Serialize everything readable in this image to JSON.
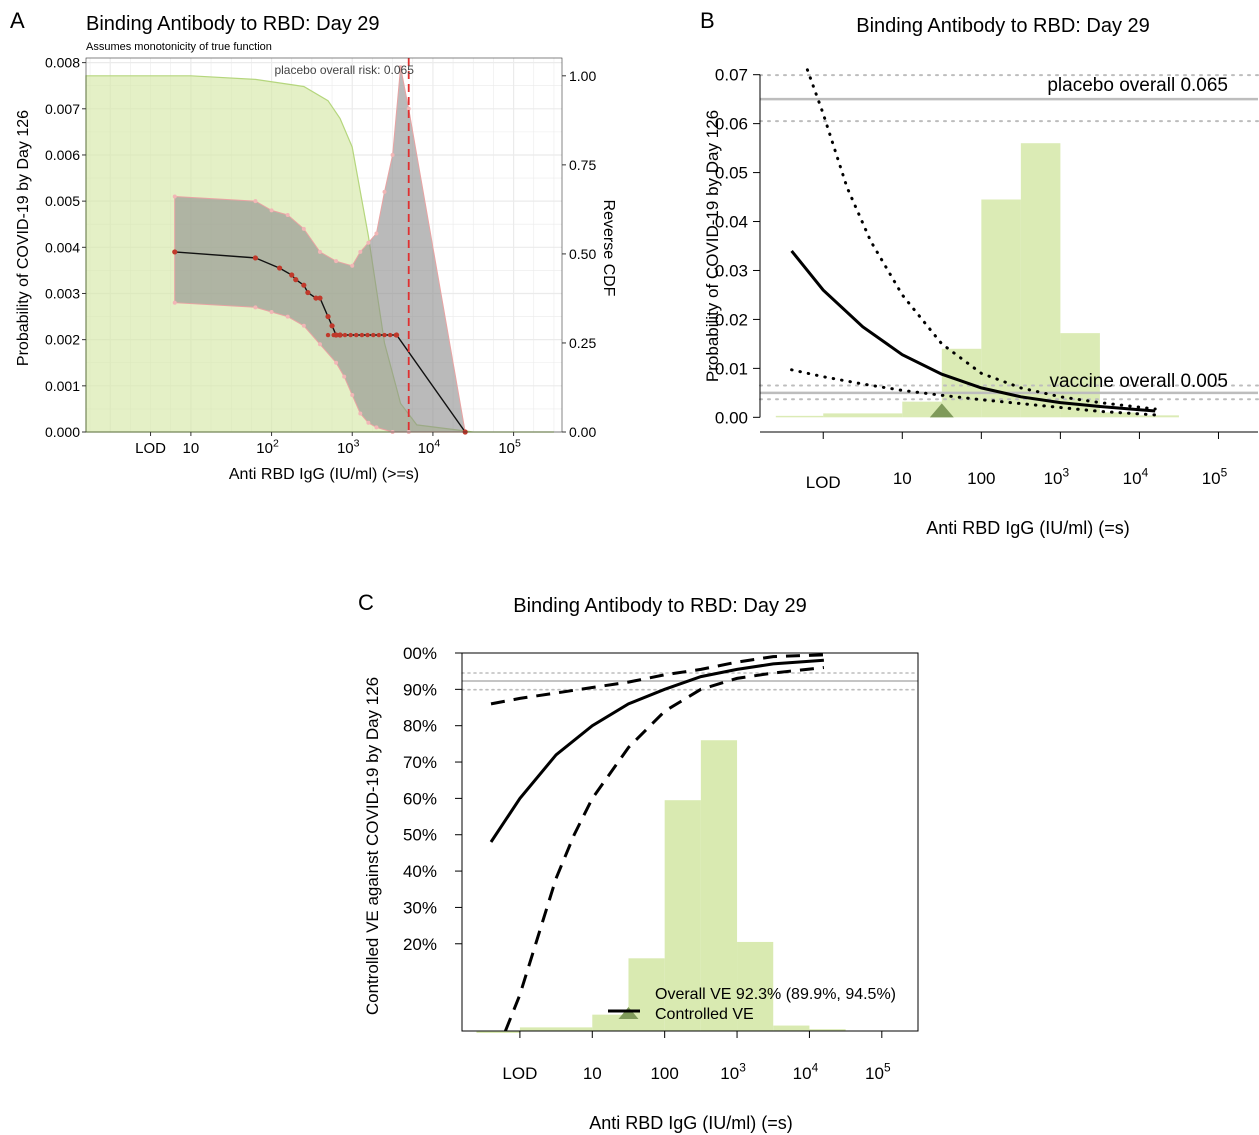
{
  "figure": {
    "colors": {
      "green_fill": "#d5e8a8",
      "green_line": "#b5d67d",
      "grey_band": "#8c8c8c",
      "point_fill": "#c0392b",
      "ref_line": "#e03030",
      "grid": "#ebebeb",
      "overall_line": "#bdbdbd",
      "marker": "#7f9a5a"
    }
  },
  "chart_data": [
    {
      "panel": "A",
      "type": "area",
      "panel_letter": "A",
      "title": "Binding Antibody to RBD: Day 29",
      "subtitle": "Assumes monotonicity of true function",
      "xlabel": "Anti RBD IgG (IU/ml) (>=s)",
      "ylabel": "Probability of COVID-19 by Day 126",
      "y2label": "Reverse CDF",
      "x_scale": "log10",
      "xlim_log10": [
        -0.3,
        5.6
      ],
      "ylim": [
        0,
        0.0081
      ],
      "y2lim": [
        0,
        1.05
      ],
      "grid": true,
      "x_ticks": [
        {
          "log": 0.5,
          "label": "LOD",
          "sup": ""
        },
        {
          "log": 1,
          "label": "10",
          "sup": ""
        },
        {
          "log": 2,
          "label": "10",
          "sup": "2"
        },
        {
          "log": 3,
          "label": "10",
          "sup": "3"
        },
        {
          "log": 4,
          "label": "10",
          "sup": "4"
        },
        {
          "log": 5,
          "label": "10",
          "sup": "5"
        }
      ],
      "y_ticks": [
        "0.000",
        "0.001",
        "0.002",
        "0.003",
        "0.004",
        "0.005",
        "0.006",
        "0.007",
        "0.008"
      ],
      "y_tick_values": [
        0,
        0.001,
        0.002,
        0.003,
        0.004,
        0.005,
        0.006,
        0.007,
        0.008
      ],
      "y2_ticks": [
        "0.00",
        "0.25",
        "0.50",
        "0.75",
        "1.00"
      ],
      "y2_tick_values": [
        0,
        0.25,
        0.5,
        0.75,
        1.0
      ],
      "annotation": "placebo overall risk: 0.065",
      "reference_line_log10": 3.7,
      "reverse_cdf": {
        "x_log10": [
          -0.3,
          1.0,
          1.8,
          2.4,
          2.7,
          2.85,
          3.0,
          3.2,
          3.4,
          3.6,
          3.8,
          4.5,
          5.5
        ],
        "values": [
          1.0,
          1.0,
          0.99,
          0.97,
          0.93,
          0.88,
          0.8,
          0.55,
          0.25,
          0.08,
          0.02,
          0.0,
          0.0
        ]
      },
      "estimate": {
        "x_log10": [
          0.8,
          1.8,
          2.1,
          2.25,
          2.3,
          2.4,
          2.45,
          2.55,
          2.6,
          2.7,
          2.75,
          2.8,
          2.85,
          3.55,
          4.4
        ],
        "values": [
          0.0039,
          0.00377,
          0.00355,
          0.0034,
          0.0033,
          0.00318,
          0.00302,
          0.0029,
          0.0029,
          0.0025,
          0.0023,
          0.0021,
          0.0021,
          0.0021,
          0.0
        ]
      },
      "ci_upper": {
        "x_log10": [
          0.8,
          1.8,
          2.0,
          2.2,
          2.4,
          2.6,
          2.8,
          3.0,
          3.1,
          3.2,
          3.3,
          3.4,
          3.5,
          3.6,
          3.7,
          4.4
        ],
        "values": [
          0.0051,
          0.005,
          0.0048,
          0.0047,
          0.0044,
          0.0039,
          0.0037,
          0.0036,
          0.0039,
          0.0041,
          0.0043,
          0.0052,
          0.006,
          0.0079,
          0.007,
          0.0
        ]
      },
      "ci_lower": {
        "x_log10": [
          0.8,
          1.8,
          2.0,
          2.2,
          2.4,
          2.6,
          2.8,
          2.9,
          3.0,
          3.1,
          3.2,
          3.3,
          3.5,
          3.7,
          4.4
        ],
        "values": [
          0.0028,
          0.0027,
          0.0026,
          0.0025,
          0.0023,
          0.0019,
          0.0015,
          0.0012,
          0.0008,
          0.0004,
          0.0002,
          0.0001,
          0.0,
          0.0,
          0.0
        ]
      }
    },
    {
      "panel": "B",
      "type": "line",
      "panel_letter": "B",
      "title": "Binding Antibody to RBD: Day 29",
      "xlabel": "Anti RBD IgG (IU/ml) (=s)",
      "ylabel": "Probability of COVID-19 by Day 126",
      "x_scale": "log10",
      "xlim_log10": [
        -0.8,
        5.5
      ],
      "ylim": [
        -0.003,
        0.073
      ],
      "grid": false,
      "x_ticks": [
        {
          "log": 0.0,
          "label": "LOD",
          "sup": ""
        },
        {
          "log": 1,
          "label": "10",
          "sup": ""
        },
        {
          "log": 2,
          "label": "100",
          "sup": ""
        },
        {
          "log": 3,
          "label": "10",
          "sup": "3"
        },
        {
          "log": 4,
          "label": "10",
          "sup": "4"
        },
        {
          "log": 5,
          "label": "10",
          "sup": "5"
        }
      ],
      "y_ticks": [
        "0.00",
        "0.01",
        "0.02",
        "0.03",
        "0.04",
        "0.05",
        "0.06",
        "0.07"
      ],
      "y_tick_values": [
        0,
        0.01,
        0.02,
        0.03,
        0.04,
        0.05,
        0.06,
        0.07
      ],
      "placebo_overall": {
        "value": 0.065,
        "ci": [
          0.0605,
          0.0699
        ],
        "label": "placebo overall 0.065"
      },
      "vaccine_overall": {
        "value": 0.005,
        "ci": [
          0.0037,
          0.0065
        ],
        "label": "vaccine overall 0.005"
      },
      "histogram": {
        "edges_log10": [
          -0.6,
          0.0,
          1.0,
          1.5,
          2.0,
          2.5,
          3.0,
          3.5,
          4.0,
          4.5
        ],
        "heights": [
          0.0003,
          0.0008,
          0.0032,
          0.014,
          0.0445,
          0.056,
          0.0172,
          0.001,
          0.0004
        ]
      },
      "estimate": {
        "x_log10": [
          -0.4,
          0.0,
          0.5,
          1.0,
          1.5,
          2.0,
          2.5,
          3.0,
          3.5,
          4.2
        ],
        "values": [
          0.034,
          0.026,
          0.0185,
          0.0128,
          0.0088,
          0.006,
          0.0042,
          0.003,
          0.0022,
          0.0013
        ]
      },
      "ci_upper": {
        "x_log10": [
          -0.2,
          0.0,
          0.3,
          0.6,
          1.0,
          1.5,
          2.0,
          2.5,
          3.0,
          3.5,
          4.2
        ],
        "values": [
          0.071,
          0.062,
          0.047,
          0.036,
          0.025,
          0.015,
          0.009,
          0.006,
          0.0042,
          0.003,
          0.0017
        ]
      },
      "ci_lower": {
        "x_log10": [
          -0.4,
          0.0,
          0.5,
          1.0,
          1.5,
          2.0,
          2.5,
          3.0,
          3.5,
          4.2
        ],
        "values": [
          0.0097,
          0.0083,
          0.0068,
          0.0055,
          0.0045,
          0.0036,
          0.0028,
          0.002,
          0.0012,
          0.0005
        ]
      },
      "marker_log10": 1.5
    },
    {
      "panel": "C",
      "type": "line",
      "panel_letter": "C",
      "title": "Binding Antibody to RBD: Day 29",
      "xlabel": "Anti RBD IgG (IU/ml) (=s)",
      "ylabel": "Controlled VE against COVID-19 by Day 126",
      "x_scale": "log10",
      "xlim_log10": [
        -0.8,
        5.5
      ],
      "ylim": [
        -0.04,
        1.0
      ],
      "grid": false,
      "x_ticks": [
        {
          "log": 0.0,
          "label": "LOD",
          "sup": ""
        },
        {
          "log": 1,
          "label": "10",
          "sup": ""
        },
        {
          "log": 2,
          "label": "100",
          "sup": ""
        },
        {
          "log": 3,
          "label": "10",
          "sup": "3"
        },
        {
          "log": 4,
          "label": "10",
          "sup": "4"
        },
        {
          "log": 5,
          "label": "10",
          "sup": "5"
        }
      ],
      "y_ticks": [
        "20%",
        "30%",
        "40%",
        "50%",
        "60%",
        "70%",
        "80%",
        "90%",
        "00%"
      ],
      "y_tick_values": [
        0.2,
        0.3,
        0.4,
        0.5,
        0.6,
        0.7,
        0.8,
        0.9,
        1.0
      ],
      "overall_ve": {
        "value": 0.923,
        "ci": [
          0.899,
          0.945
        ]
      },
      "legend": {
        "overall": "Overall VE 92.3% (89.9%, 94.5%)",
        "controlled": "Controlled VE"
      },
      "histogram": {
        "edges_log10": [
          -0.6,
          0.0,
          1.0,
          1.5,
          2.0,
          2.5,
          3.0,
          3.5,
          4.0,
          4.5
        ],
        "heights": [
          0.0,
          0.01,
          0.045,
          0.2,
          0.635,
          0.8,
          0.245,
          0.015,
          0.005
        ]
      },
      "estimate": {
        "x_log10": [
          -0.4,
          0.0,
          0.5,
          1.0,
          1.5,
          2.0,
          2.5,
          3.0,
          3.5,
          4.2
        ],
        "values": [
          0.48,
          0.6,
          0.72,
          0.8,
          0.86,
          0.9,
          0.935,
          0.955,
          0.97,
          0.98
        ]
      },
      "ci_upper": {
        "x_log10": [
          -0.4,
          0.0,
          0.5,
          1.0,
          1.5,
          2.0,
          2.5,
          3.0,
          3.5,
          4.2
        ],
        "values": [
          0.86,
          0.875,
          0.89,
          0.905,
          0.92,
          0.94,
          0.955,
          0.975,
          0.99,
          0.995
        ]
      },
      "ci_lower": {
        "x_log10": [
          -0.2,
          0.0,
          0.25,
          0.5,
          0.75,
          1.0,
          1.5,
          2.0,
          2.5,
          3.0,
          3.5,
          4.2
        ],
        "values": [
          -0.04,
          0.06,
          0.22,
          0.38,
          0.5,
          0.6,
          0.74,
          0.84,
          0.9,
          0.93,
          0.945,
          0.96
        ]
      },
      "marker_log10": 1.5
    }
  ]
}
